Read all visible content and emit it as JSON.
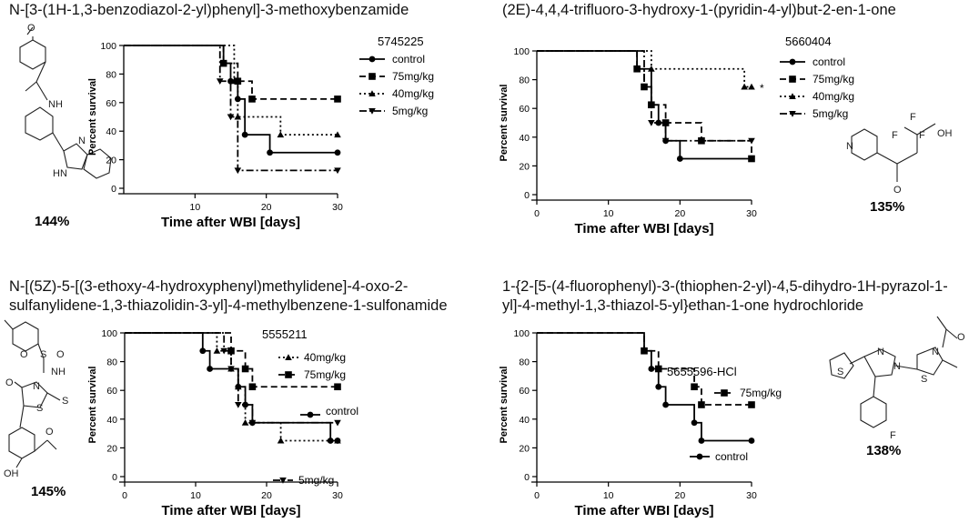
{
  "panels": [
    {
      "title_lines": [
        "N-[3-(1H-1,3-benzodiazol-2-yl)phenyl]-3-methoxybenzamide"
      ],
      "percent": "144%",
      "molecule_labels": {
        "o": "O",
        "nh": "NH",
        "n": "N",
        "hn": "HN"
      },
      "chart_data": {
        "type": "line",
        "title": "5745225",
        "xlabel": "Time after WBI [days]",
        "ylabel": "Percent survival",
        "xlim": [
          0,
          30
        ],
        "ylim": [
          0,
          100
        ],
        "xticks": [
          10,
          20,
          30
        ],
        "yticks": [
          0,
          20,
          40,
          60,
          80,
          100
        ],
        "legend_position": "top-right",
        "series": [
          {
            "name": "control",
            "marker": "circle",
            "dash": "solid",
            "x": [
              0,
              14,
              15,
              16,
              17,
              20.5,
              30
            ],
            "y": [
              100,
              87.5,
              75,
              62.5,
              37.5,
              25,
              25
            ]
          },
          {
            "name": "75mg/kg",
            "marker": "square",
            "dash": "dashed",
            "x": [
              0,
              14,
              16,
              18,
              30
            ],
            "y": [
              100,
              87.5,
              75,
              62.5,
              62.5
            ]
          },
          {
            "name": "40mg/kg",
            "marker": "triangle-up",
            "dash": "dotted",
            "x": [
              0,
              15.5,
              16,
              22,
              30
            ],
            "y": [
              100,
              75,
              50,
              37.5,
              37.5
            ]
          },
          {
            "name": "5mg/kg",
            "marker": "triangle-down",
            "dash": "dashdot",
            "x": [
              0,
              13.5,
              15,
              16,
              30
            ],
            "y": [
              100,
              75,
              50,
              12.5,
              12.5
            ]
          }
        ]
      }
    },
    {
      "title_lines": [
        "(2E)-4,4,4-trifluoro-3-hydroxy-1-(pyridin-4-yl)but-2-en-1-one"
      ],
      "percent": "135%",
      "molecule_labels": {
        "n": "N",
        "f1": "F",
        "f2": "F",
        "f3": "F",
        "oh": "OH",
        "o": "O"
      },
      "chart_data": {
        "type": "line",
        "title": "5660404",
        "xlabel": "Time after WBI [days]",
        "ylabel": "Percent survival",
        "xlim": [
          0,
          30
        ],
        "ylim": [
          0,
          100
        ],
        "xticks": [
          0,
          10,
          20,
          30
        ],
        "yticks": [
          0,
          20,
          40,
          60,
          80,
          100
        ],
        "legend_position": "right",
        "annotation": "*",
        "series": [
          {
            "name": "control",
            "marker": "circle",
            "dash": "solid",
            "x": [
              0,
              14,
              16,
              17,
              18,
              20,
              30
            ],
            "y": [
              100,
              87.5,
              62.5,
              50,
              37.5,
              25,
              25
            ]
          },
          {
            "name": "75mg/kg",
            "marker": "square",
            "dash": "dashed",
            "x": [
              0,
              14,
              15,
              16,
              18,
              23,
              30
            ],
            "y": [
              100,
              87.5,
              75,
              62.5,
              50,
              37.5,
              25
            ]
          },
          {
            "name": "40mg/kg",
            "marker": "triangle-up",
            "dash": "dotted",
            "x": [
              0,
              16,
              29,
              30
            ],
            "y": [
              100,
              87.5,
              75,
              75
            ]
          },
          {
            "name": "5mg/kg",
            "marker": "triangle-down",
            "dash": "dashdot",
            "x": [
              0,
              15,
              16,
              18,
              30
            ],
            "y": [
              100,
              75,
              50,
              37.5,
              37.5
            ]
          }
        ]
      }
    },
    {
      "title_lines": [
        "N-[(5Z)-5-[(3-ethoxy-4-hydroxyphenyl)methylidene]-4-oxo-2-",
        "sulfanylidene-1,3-thiazolidin-3-yl]-4-methylbenzene-1-sulfonamide"
      ],
      "percent": "145%",
      "molecule_labels": {
        "o1": "O",
        "s": "S",
        "o2": "O",
        "nh": "NH",
        "o3": "O",
        "n": "N",
        "s2": "S",
        "s3": "S",
        "o4": "O",
        "oh": "OH"
      },
      "chart_data": {
        "type": "line",
        "title": "5555211",
        "xlabel": "Time after WBI [days]",
        "ylabel": "Percent survival",
        "xlim": [
          0,
          30
        ],
        "ylim": [
          0,
          100
        ],
        "xticks": [
          0,
          10,
          20,
          30
        ],
        "yticks": [
          0,
          20,
          40,
          60,
          80,
          100
        ],
        "legend_position": "inline",
        "series": [
          {
            "name": "40mg/kg",
            "marker": "triangle-up",
            "dash": "dotted",
            "x": [
              0,
              13,
              15,
              16,
              17,
              22,
              30
            ],
            "y": [
              100,
              87.5,
              75,
              62.5,
              37.5,
              25,
              25
            ]
          },
          {
            "name": "75mg/kg",
            "marker": "square",
            "dash": "dashed",
            "x": [
              0,
              15,
              17,
              18,
              30
            ],
            "y": [
              100,
              87.5,
              75,
              62.5,
              62.5
            ]
          },
          {
            "name": "control",
            "marker": "circle",
            "dash": "solid",
            "x": [
              0,
              11,
              12,
              16,
              17,
              18,
              29,
              30
            ],
            "y": [
              100,
              87.5,
              75,
              62.5,
              50,
              37.5,
              25,
              25
            ]
          },
          {
            "name": "5mg/kg",
            "marker": "triangle-down",
            "dash": "dashdot",
            "x": [
              0,
              14,
              15,
              16,
              18,
              30
            ],
            "y": [
              100,
              87.5,
              75,
              50,
              37.5,
              37.5
            ]
          }
        ]
      }
    },
    {
      "title_lines": [
        "1-{2-[5-(4-fluorophenyl)-3-(thiophen-2-yl)-4,5-dihydro-1H-pyrazol-1-",
        "yl]-4-methyl-1,3-thiazol-5-yl}ethan-1-one hydrochloride"
      ],
      "percent": "138%",
      "molecule_labels": {
        "o": "O",
        "s1": "S",
        "n1": "N",
        "n2": "N",
        "s2": "S",
        "n3": "N",
        "f": "F"
      },
      "chart_data": {
        "type": "line",
        "title": "5655596-HCl",
        "xlabel": "Time after WBI [days]",
        "ylabel": "Percent survival",
        "xlim": [
          0,
          30
        ],
        "ylim": [
          0,
          100
        ],
        "xticks": [
          0,
          10,
          20,
          30
        ],
        "yticks": [
          0,
          20,
          40,
          60,
          80,
          100
        ],
        "legend_position": "inline",
        "series": [
          {
            "name": "75mg/kg",
            "marker": "square",
            "dash": "dashed",
            "x": [
              0,
              15,
              17,
              22,
              23,
              30
            ],
            "y": [
              100,
              87.5,
              75,
              62.5,
              50,
              50
            ]
          },
          {
            "name": "control",
            "marker": "circle",
            "dash": "solid",
            "x": [
              0,
              15,
              16,
              17,
              18,
              22,
              23,
              30
            ],
            "y": [
              100,
              87.5,
              75,
              62.5,
              50,
              37.5,
              25,
              25
            ]
          }
        ]
      }
    }
  ]
}
